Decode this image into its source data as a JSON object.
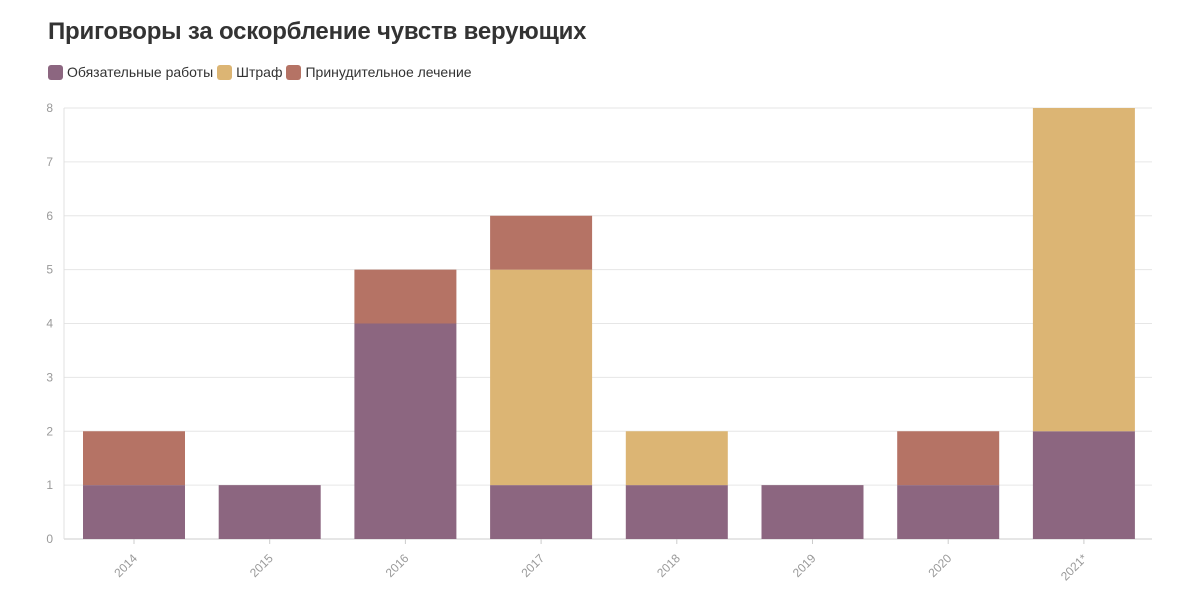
{
  "chart_data": {
    "type": "bar",
    "stacked": true,
    "title": "Приговоры за оскорбление чувств верующих",
    "categories": [
      "2014",
      "2015",
      "2016",
      "2017",
      "2018",
      "2019",
      "2020",
      "2021*"
    ],
    "series": [
      {
        "name": "Обязательные работы",
        "color": "#8c6680",
        "values": [
          1,
          1,
          4,
          1,
          1,
          1,
          1,
          2
        ]
      },
      {
        "name": "Штраф",
        "color": "#dcb574",
        "values": [
          0,
          0,
          0,
          4,
          1,
          0,
          0,
          6
        ]
      },
      {
        "name": "Принудительное лечение",
        "color": "#b57365",
        "values": [
          1,
          0,
          1,
          1,
          0,
          0,
          1,
          0
        ]
      }
    ],
    "ylim": [
      0,
      8
    ],
    "yticks": [
      0,
      1,
      2,
      3,
      4,
      5,
      6,
      7,
      8
    ],
    "grid": true,
    "legend": "top-left"
  }
}
